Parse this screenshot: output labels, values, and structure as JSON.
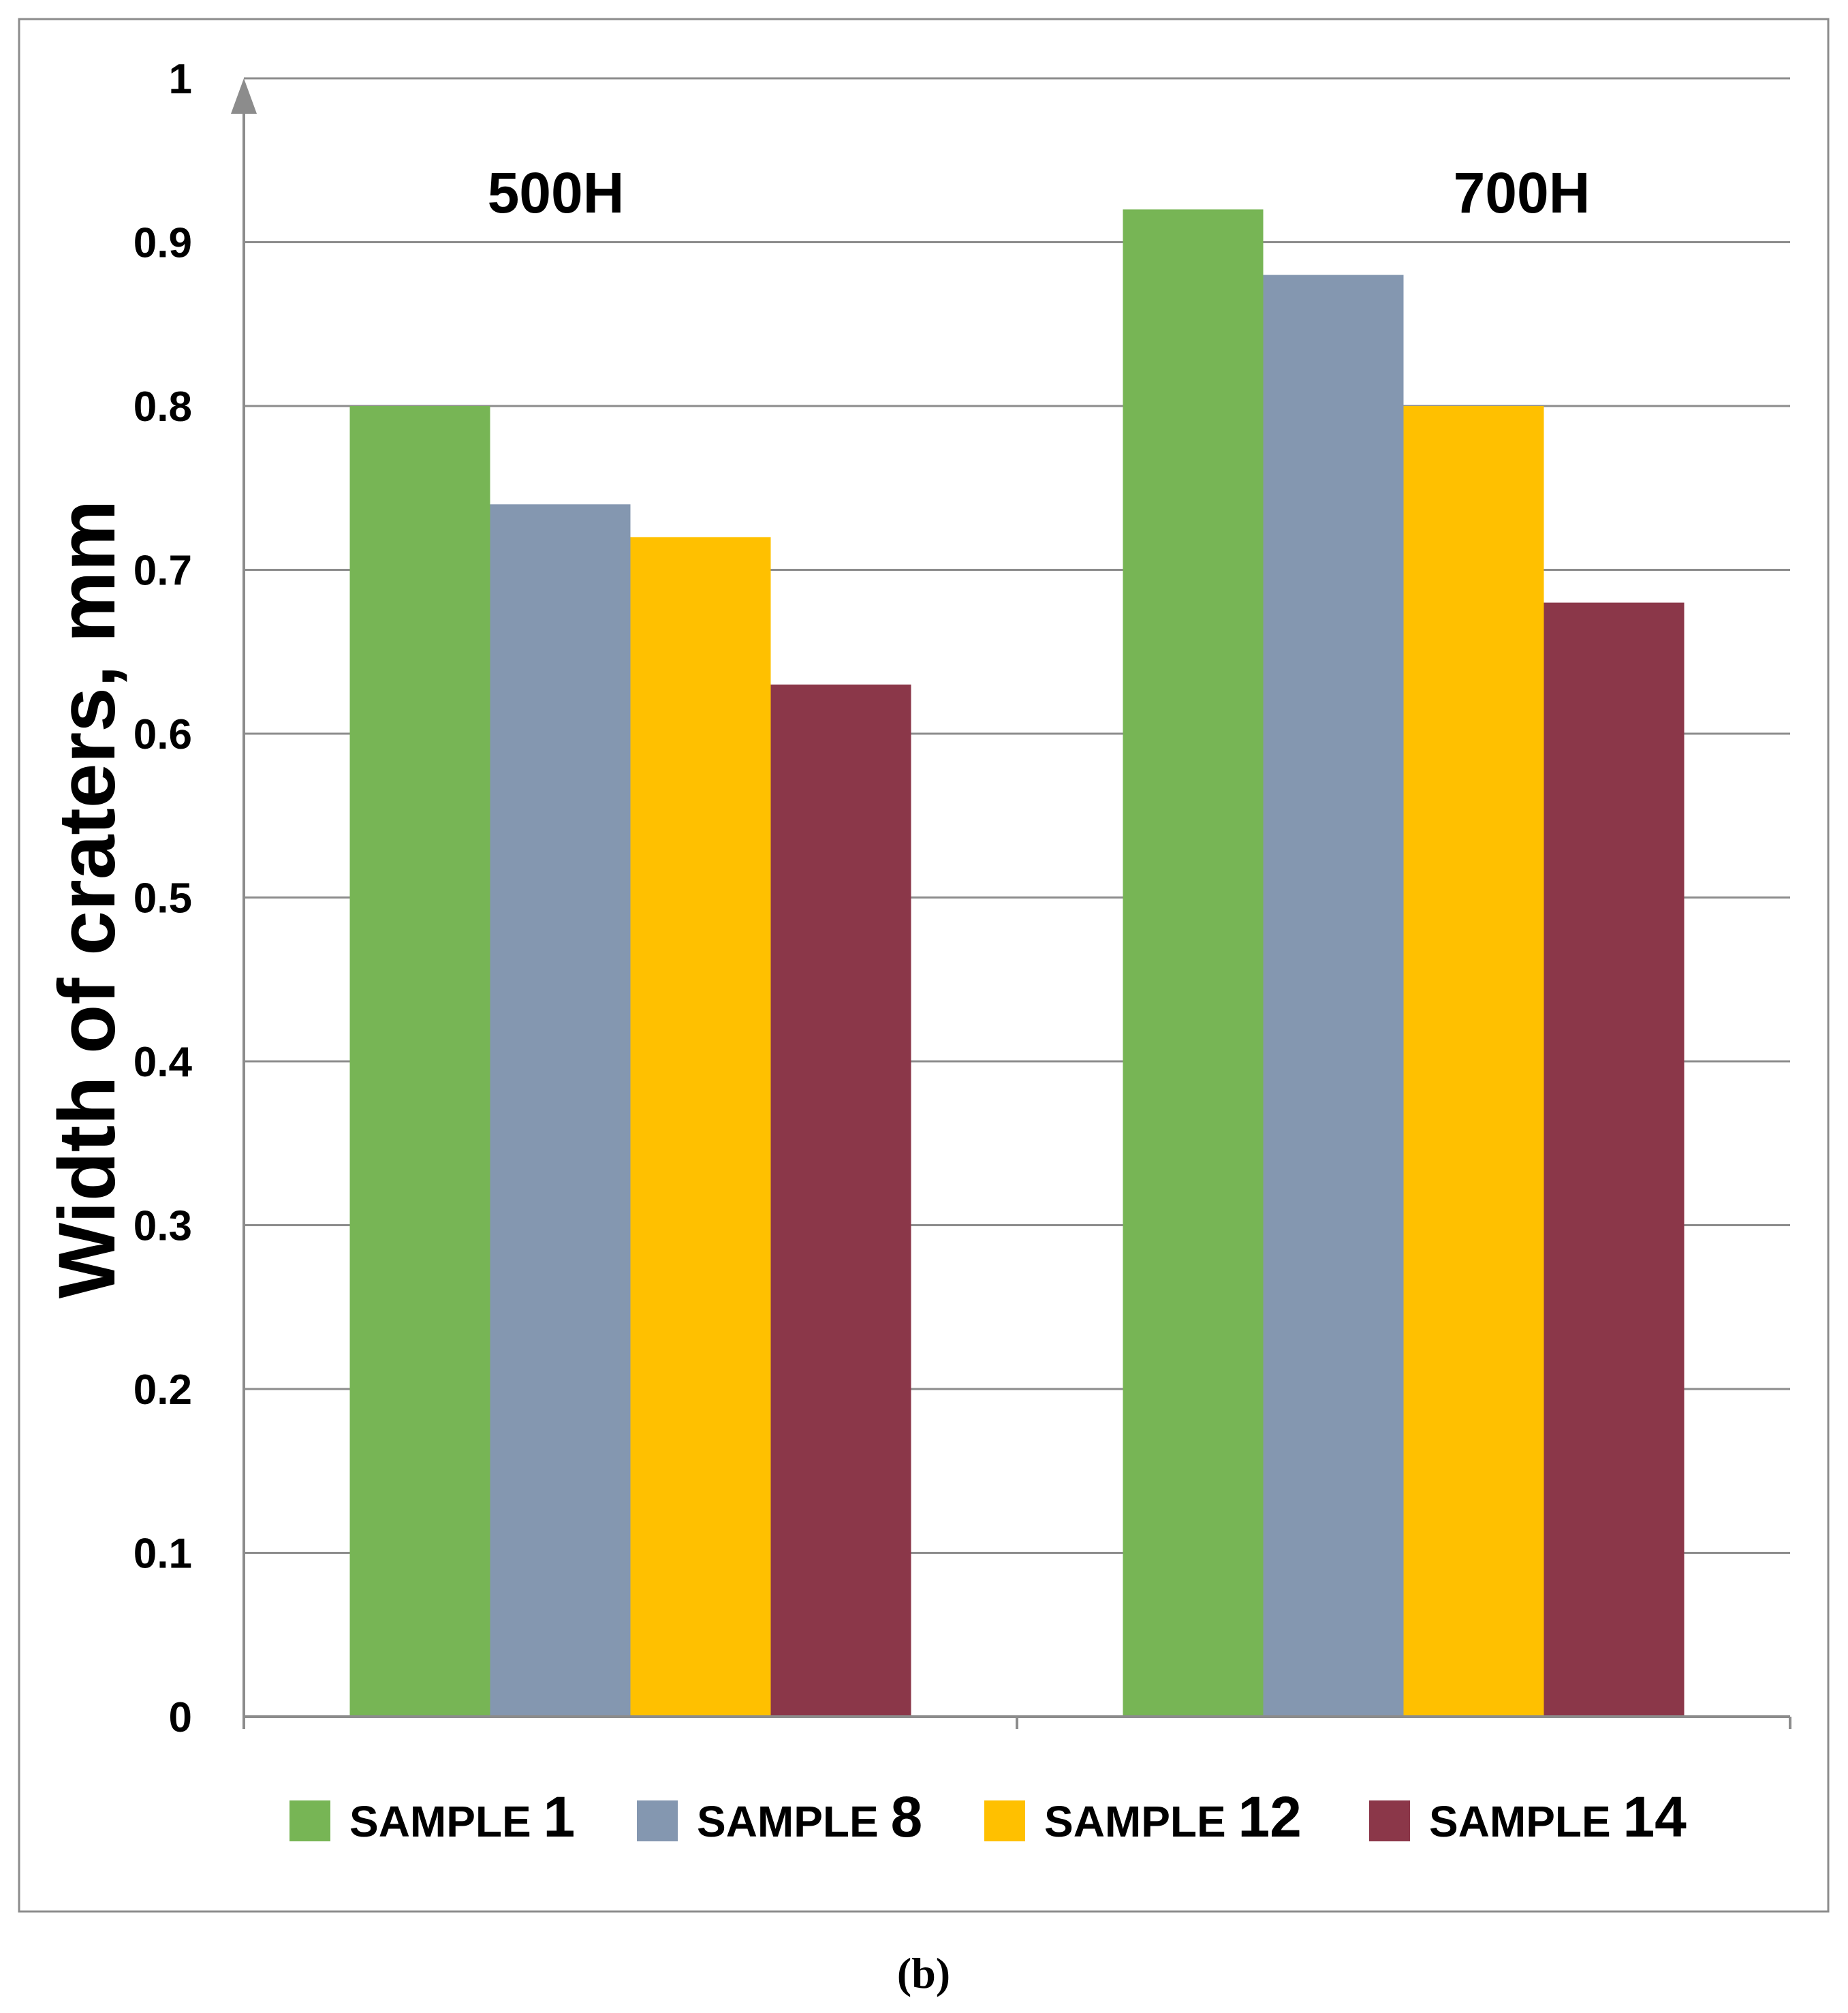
{
  "chart_data": {
    "type": "bar",
    "categories": [
      "500H",
      "700H"
    ],
    "series": [
      {
        "name_prefix": "SAMPLE",
        "name_number": "1",
        "color": "#77b555",
        "values": [
          0.8,
          0.92
        ]
      },
      {
        "name_prefix": "SAMPLE",
        "name_number": "8",
        "color": "#8497b0",
        "values": [
          0.74,
          0.88
        ]
      },
      {
        "name_prefix": "SAMPLE",
        "name_number": "12",
        "color": "#ffc000",
        "values": [
          0.72,
          0.8
        ]
      },
      {
        "name_prefix": "SAMPLE",
        "name_number": "14",
        "color": "#8b3749",
        "values": [
          0.63,
          0.68
        ]
      }
    ],
    "ylabel": "Width of craters, mm",
    "xlabel": "",
    "ylim": [
      0,
      1
    ],
    "yticks": [
      "0",
      "0.1",
      "0.2",
      "0.3",
      "0.4",
      "0.5",
      "0.6",
      "0.7",
      "0.8",
      "0.9",
      "1"
    ],
    "grid": true,
    "legend_position": "bottom",
    "caption": "(b)"
  }
}
